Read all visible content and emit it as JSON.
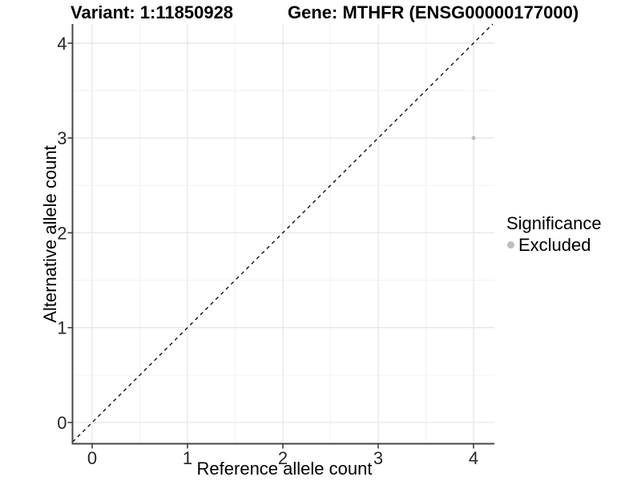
{
  "chart_data": {
    "type": "scatter",
    "titles": {
      "left": "Variant: 1:11850928",
      "right": "Gene: MTHFR (ENSG00000177000)"
    },
    "xlabel": "Reference allele count",
    "ylabel": "Alternative allele count",
    "xticks": [
      0,
      1,
      2,
      3,
      4
    ],
    "yticks": [
      0,
      1,
      2,
      3,
      4
    ],
    "xlim": [
      -0.21,
      4.22
    ],
    "ylim": [
      -0.22,
      4.2
    ],
    "grid": {
      "major": true,
      "minor": true
    },
    "legend": {
      "title": "Significance",
      "position": "right",
      "entries": [
        {
          "label": "Excluded",
          "color": "#bebebe",
          "marker": "circle"
        }
      ]
    },
    "series": [
      {
        "name": "Excluded",
        "color": "#bebebe",
        "points": [
          {
            "x": 4,
            "y": 3
          }
        ]
      }
    ],
    "reference_line": {
      "kind": "identity",
      "equation": "y = x",
      "style": "dashed",
      "color": "#000000"
    },
    "colors": {
      "background": "#ffffff",
      "axis_line": "#464646",
      "tick": "#333333",
      "grid_major": "#e6e6e6",
      "grid_minor": "#f2f2f2",
      "text": "#000000",
      "point": "#bebebe"
    }
  }
}
